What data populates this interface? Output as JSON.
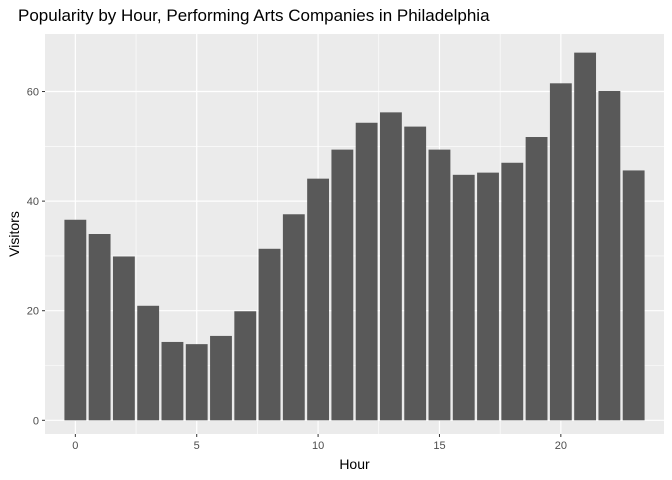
{
  "chart_data": {
    "type": "bar",
    "title": "Popularity by Hour, Performing Arts Companies in Philadelphia",
    "xlabel": "Hour",
    "ylabel": "Visitors",
    "x": [
      0,
      1,
      2,
      3,
      4,
      5,
      6,
      7,
      8,
      9,
      10,
      11,
      12,
      13,
      14,
      15,
      16,
      17,
      18,
      19,
      20,
      21,
      22,
      23
    ],
    "values": [
      36.6,
      34.0,
      29.9,
      20.9,
      14.3,
      13.9,
      15.4,
      19.9,
      31.3,
      37.6,
      44.1,
      49.4,
      54.3,
      56.2,
      53.6,
      49.4,
      44.8,
      45.2,
      47.0,
      51.7,
      61.5,
      67.1,
      60.1,
      45.6
    ],
    "xlim": [
      -1.25,
      24.25
    ],
    "ylim": [
      -2.5,
      70.5
    ],
    "x_ticks": [
      0,
      5,
      10,
      15,
      20
    ],
    "y_ticks": [
      0,
      20,
      40,
      60
    ],
    "grid": true,
    "colors": {
      "bar": "#595959",
      "panel": "#ebebeb",
      "grid": "#ffffff"
    }
  }
}
